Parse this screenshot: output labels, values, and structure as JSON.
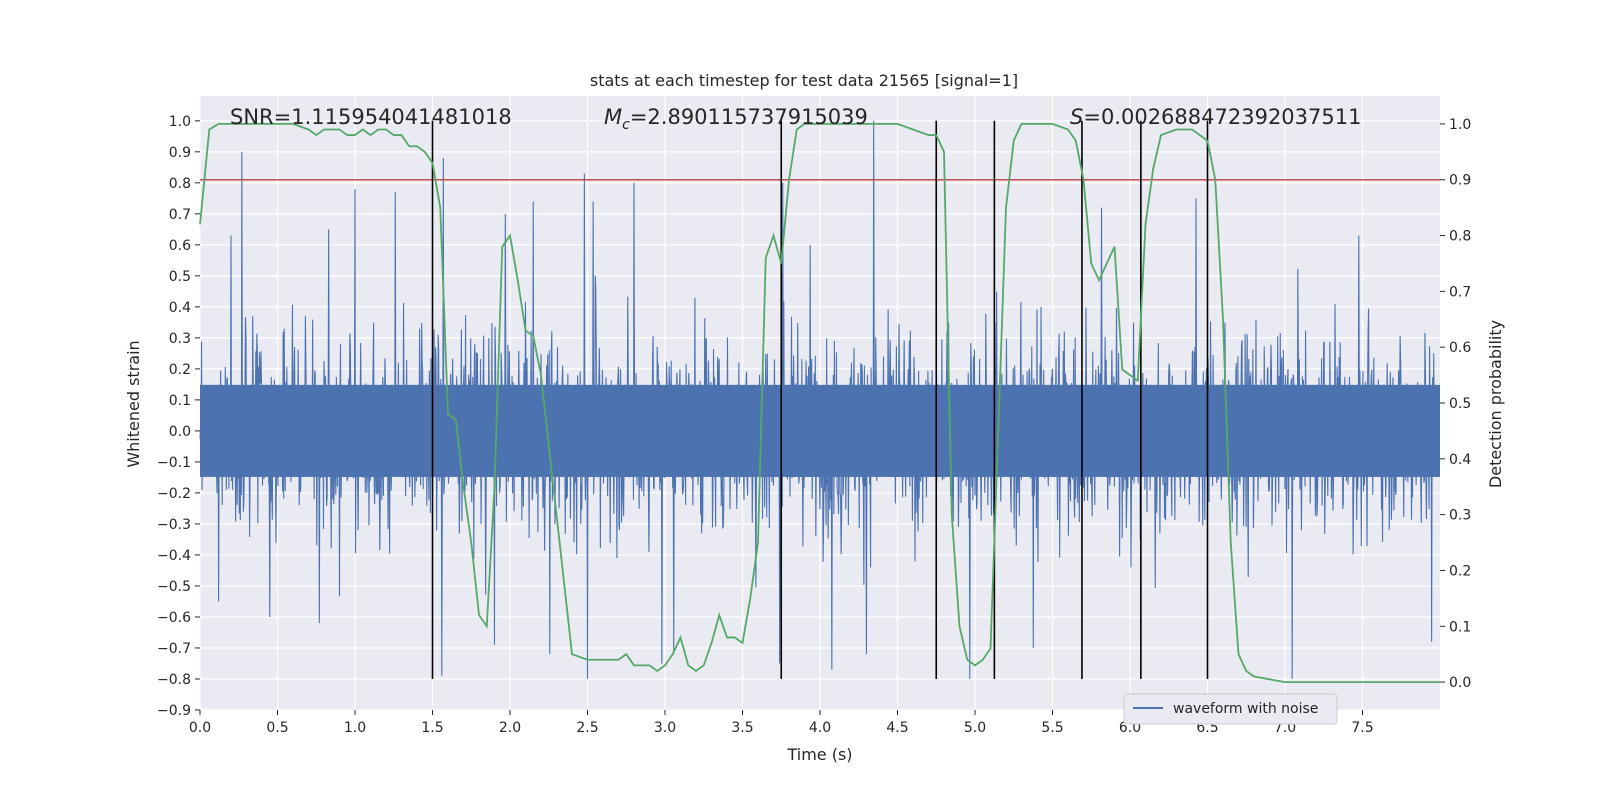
{
  "chart_data": {
    "type": "line",
    "title": "stats at each timestep for test data 21565 [signal=1]",
    "xlabel": "Time (s)",
    "ylabel_left": "Whitened strain",
    "ylabel_right": "Detection probability",
    "xlim": [
      0,
      8
    ],
    "ylim_left": [
      -0.9,
      1.08
    ],
    "ylim_right": [
      -0.05,
      1.05
    ],
    "x_ticks": [
      0.0,
      0.5,
      1.0,
      1.5,
      2.0,
      2.5,
      3.0,
      3.5,
      4.0,
      4.5,
      5.0,
      5.5,
      6.0,
      6.5,
      7.0,
      7.5
    ],
    "x_tick_labels": [
      "0.0",
      "0.5",
      "1.0",
      "1.5",
      "2.0",
      "2.5",
      "3.0",
      "3.5",
      "4.0",
      "4.5",
      "5.0",
      "5.5",
      "6.0",
      "6.5",
      "7.0",
      "7.5"
    ],
    "y_left_ticks": [
      -0.9,
      -0.8,
      -0.7,
      -0.6,
      -0.5,
      -0.4,
      -0.3,
      -0.2,
      -0.1,
      0.0,
      0.1,
      0.2,
      0.3,
      0.4,
      0.5,
      0.6,
      0.7,
      0.8,
      0.9,
      1.0
    ],
    "y_left_tick_labels": [
      "−0.9",
      "−0.8",
      "−0.7",
      "−0.6",
      "−0.5",
      "−0.4",
      "−0.3",
      "−0.2",
      "−0.1",
      "0.0",
      "0.1",
      "0.2",
      "0.3",
      "0.4",
      "0.5",
      "0.6",
      "0.7",
      "0.8",
      "0.9",
      "1.0"
    ],
    "y_right_ticks": [
      0.0,
      0.1,
      0.2,
      0.3,
      0.4,
      0.5,
      0.6,
      0.7,
      0.8,
      0.9,
      1.0
    ],
    "y_right_tick_labels": [
      "0.0",
      "0.1",
      "0.2",
      "0.3",
      "0.4",
      "0.5",
      "0.6",
      "0.7",
      "0.8",
      "0.9",
      "1.0"
    ],
    "annotations": {
      "snr": "SNR=1.115954041481018",
      "mc_symbol": "M",
      "mc_sub": "c",
      "mc_value": "=2.890115737915039",
      "s_symbol": "S",
      "s_value": "=0.002688472392037511"
    },
    "legend": {
      "label": "waveform with noise",
      "position": "lower-right"
    },
    "threshold_right": 0.9,
    "vertical_lines_x": [
      1.5,
      3.75,
      4.75,
      5.125,
      5.69,
      6.07,
      6.5
    ],
    "vertical_lines_ylim_left": [
      -0.8,
      1.0
    ],
    "series": [
      {
        "name": "waveform with noise",
        "axis": "left",
        "color": "#4c72b0",
        "band_typical": [
          -0.27,
          0.27
        ],
        "peaks": [
          {
            "x": 0.27,
            "y": 0.9
          },
          {
            "x": 0.2,
            "y": 0.63
          },
          {
            "x": 0.45,
            "y": 0.62
          },
          {
            "x": 0.83,
            "y": 0.65
          },
          {
            "x": 1.0,
            "y": 0.78
          },
          {
            "x": 1.26,
            "y": 0.77
          },
          {
            "x": 1.57,
            "y": 0.88
          },
          {
            "x": 1.97,
            "y": 0.7
          },
          {
            "x": 2.48,
            "y": 0.83
          },
          {
            "x": 2.8,
            "y": 0.8
          },
          {
            "x": 3.76,
            "y": 0.8
          },
          {
            "x": 4.35,
            "y": 1.0
          },
          {
            "x": 5.82,
            "y": 0.72
          },
          {
            "x": 6.43,
            "y": 0.75
          },
          {
            "x": 7.48,
            "y": 0.63
          },
          {
            "x": 0.12,
            "y": -0.55
          },
          {
            "x": 0.45,
            "y": -0.6
          },
          {
            "x": 0.77,
            "y": -0.62
          },
          {
            "x": 1.56,
            "y": -0.79
          },
          {
            "x": 1.9,
            "y": -0.69
          },
          {
            "x": 2.5,
            "y": -0.8
          },
          {
            "x": 2.98,
            "y": -0.75
          },
          {
            "x": 3.74,
            "y": -0.75
          },
          {
            "x": 4.08,
            "y": -0.77
          },
          {
            "x": 4.97,
            "y": -0.8
          },
          {
            "x": 5.38,
            "y": -0.7
          },
          {
            "x": 7.05,
            "y": -0.8
          },
          {
            "x": 7.95,
            "y": -0.68
          }
        ]
      },
      {
        "name": "detection probability",
        "axis": "right",
        "color": "#55a868",
        "x": [
          0.0,
          0.06,
          0.12,
          0.2,
          0.3,
          0.4,
          0.5,
          0.6,
          0.7,
          0.75,
          0.8,
          0.9,
          0.95,
          1.0,
          1.05,
          1.1,
          1.15,
          1.2,
          1.25,
          1.3,
          1.35,
          1.4,
          1.45,
          1.5,
          1.55,
          1.6,
          1.65,
          1.7,
          1.75,
          1.8,
          1.85,
          1.9,
          1.95,
          2.0,
          2.05,
          2.1,
          2.15,
          2.2,
          2.3,
          2.4,
          2.5,
          2.6,
          2.7,
          2.75,
          2.8,
          2.9,
          2.95,
          3.0,
          3.05,
          3.1,
          3.15,
          3.2,
          3.25,
          3.3,
          3.35,
          3.4,
          3.45,
          3.5,
          3.55,
          3.6,
          3.65,
          3.7,
          3.75,
          3.8,
          3.85,
          3.9,
          4.0,
          4.2,
          4.5,
          4.6,
          4.7,
          4.75,
          4.8,
          4.85,
          4.9,
          4.95,
          5.0,
          5.05,
          5.1,
          5.15,
          5.2,
          5.25,
          5.3,
          5.4,
          5.5,
          5.6,
          5.65,
          5.7,
          5.75,
          5.8,
          5.85,
          5.9,
          5.95,
          6.0,
          6.05,
          6.1,
          6.15,
          6.2,
          6.3,
          6.4,
          6.5,
          6.55,
          6.6,
          6.65,
          6.7,
          6.75,
          6.8,
          7.0,
          7.5,
          7.6,
          8.0
        ],
        "y": [
          0.82,
          0.99,
          1.0,
          1.0,
          1.0,
          1.0,
          1.0,
          1.0,
          0.99,
          0.98,
          0.99,
          0.99,
          0.98,
          0.98,
          0.99,
          0.98,
          0.99,
          0.99,
          0.98,
          0.98,
          0.96,
          0.96,
          0.95,
          0.93,
          0.85,
          0.48,
          0.47,
          0.35,
          0.25,
          0.12,
          0.1,
          0.35,
          0.78,
          0.8,
          0.72,
          0.63,
          0.62,
          0.55,
          0.3,
          0.05,
          0.04,
          0.04,
          0.04,
          0.05,
          0.03,
          0.03,
          0.02,
          0.03,
          0.05,
          0.08,
          0.03,
          0.02,
          0.03,
          0.07,
          0.12,
          0.08,
          0.08,
          0.07,
          0.15,
          0.25,
          0.76,
          0.8,
          0.75,
          0.9,
          0.99,
          1.0,
          1.0,
          1.0,
          1.0,
          0.99,
          0.98,
          0.98,
          0.95,
          0.3,
          0.1,
          0.04,
          0.03,
          0.04,
          0.06,
          0.45,
          0.85,
          0.97,
          1.0,
          1.0,
          1.0,
          0.99,
          0.97,
          0.9,
          0.75,
          0.72,
          0.75,
          0.78,
          0.56,
          0.55,
          0.54,
          0.82,
          0.92,
          0.98,
          0.99,
          0.99,
          0.97,
          0.9,
          0.65,
          0.25,
          0.05,
          0.02,
          0.01,
          0.0,
          0.0,
          0.0,
          0.0
        ]
      }
    ]
  }
}
